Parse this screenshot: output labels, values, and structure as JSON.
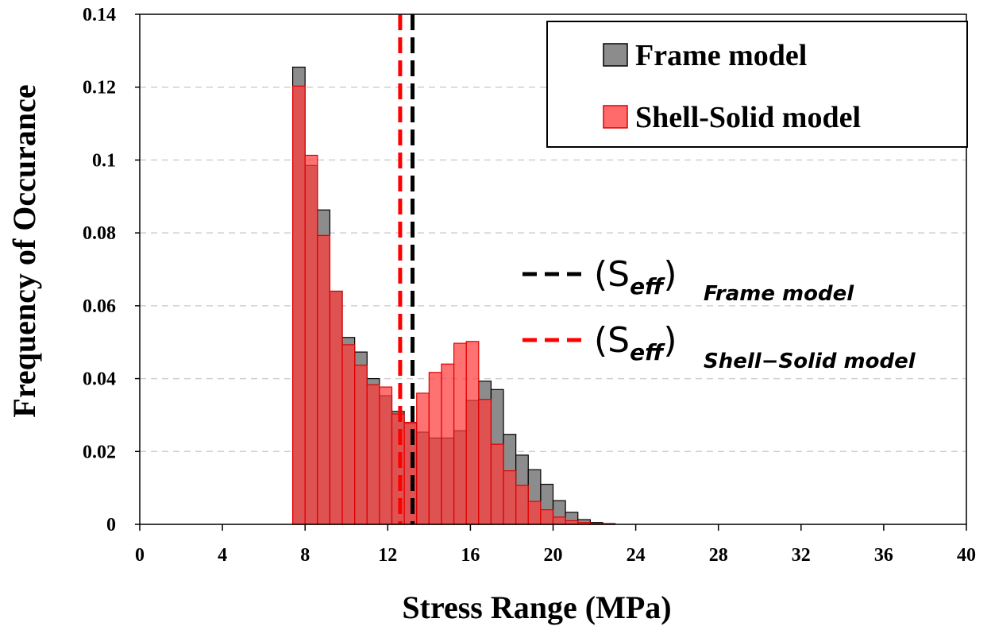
{
  "chart_data": {
    "type": "bar",
    "xlabel": "Stress Range (MPa)",
    "ylabel": "Frequency of Occurance",
    "xlim": [
      0,
      40
    ],
    "ylim": [
      0,
      0.14
    ],
    "x_ticks": [
      0,
      4,
      8,
      12,
      16,
      20,
      24,
      28,
      32,
      36,
      40
    ],
    "x_tick_labels": [
      "0",
      "4",
      "8",
      "12",
      "16",
      "20",
      "24",
      "28",
      "32",
      "36",
      "40"
    ],
    "y_ticks": [
      0,
      0.02,
      0.04,
      0.06,
      0.08,
      0.1,
      0.12,
      0.14
    ],
    "y_tick_labels": [
      "0",
      "0.02",
      "0.04",
      "0.06",
      "0.08",
      "0.1",
      "0.12",
      "0.14"
    ],
    "grid": "horizontal dashed",
    "legend_position": "top-right",
    "bin_width": 0.6,
    "bin_left_edges": [
      7.4,
      8.0,
      8.6,
      9.2,
      9.8,
      10.4,
      11.0,
      11.6,
      12.2,
      12.8,
      13.4,
      14.0,
      14.6,
      15.2,
      15.8,
      16.4,
      17.0,
      17.6,
      18.2,
      18.8,
      19.4,
      20.0,
      20.6,
      21.2,
      21.8,
      22.4
    ],
    "series": [
      {
        "name": "Frame model",
        "color": "#8c8c8c",
        "edge_color": "#000000",
        "values": [
          0.1255,
          0.0985,
          0.0863,
          0.064,
          0.0513,
          0.0473,
          0.04,
          0.0353,
          0.031,
          0.0277,
          0.0253,
          0.0237,
          0.0237,
          0.0257,
          0.034,
          0.0393,
          0.037,
          0.0247,
          0.019,
          0.015,
          0.011,
          0.0065,
          0.0033,
          0.0013,
          0.0005,
          0.0002
        ]
      },
      {
        "name": "Shell-Solid model",
        "color": "#ff3b3b",
        "edge_color": "#e00000",
        "values": [
          0.1203,
          0.1013,
          0.0793,
          0.064,
          0.0493,
          0.0437,
          0.0383,
          0.0377,
          0.0303,
          0.028,
          0.036,
          0.0417,
          0.044,
          0.0497,
          0.0502,
          0.0343,
          0.022,
          0.0147,
          0.0107,
          0.0063,
          0.004,
          0.002,
          0.001,
          0.0005,
          0.0002,
          0.0001
        ]
      }
    ],
    "reference_lines": [
      {
        "name": "Frame model",
        "x": 13.2,
        "color": "#000000",
        "style": "dashed"
      },
      {
        "name": "Shell-Solid model",
        "x": 12.6,
        "color": "#ff0000",
        "style": "dashed"
      }
    ]
  },
  "legend": {
    "items": [
      {
        "label": "Frame model",
        "swatch_color": "#8c8c8c"
      },
      {
        "label": "Shell-Solid model",
        "swatch_color": "#ff6b6b"
      }
    ]
  },
  "annotations": {
    "frame": {
      "main": "(S",
      "eff": "eff",
      "sub": "Frame model",
      "line_color": "#000000"
    },
    "shell": {
      "main": "(S",
      "eff": "eff",
      "sub": "Shell−Solid model",
      "line_color": "#ff0000"
    }
  }
}
